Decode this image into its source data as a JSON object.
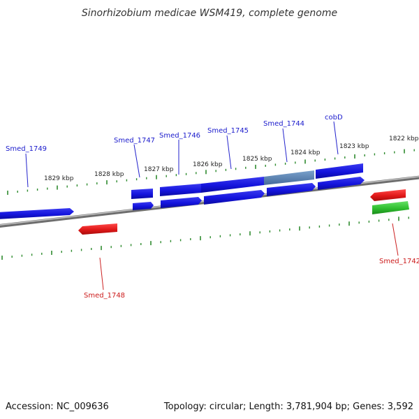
{
  "title": "Sinorhizobium medicae WSM419, complete genome",
  "footer": {
    "accession": "Accession: NC_009636",
    "summary": "Topology: circular; Length: 3,781,904 bp; Genes: 3,592"
  },
  "scale": {
    "tick_color": "#2e8b2e",
    "labels": [
      "1829 kbp",
      "1828 kbp",
      "1827 kbp",
      "1826 kbp",
      "1825 kbp",
      "1824 kbp",
      "1823 kbp",
      "1822 kbp"
    ]
  },
  "colors": {
    "forward_gene": "#1414dd",
    "highlight_gene": "#5b86b6",
    "reverse_gene": "#e01818",
    "rna_gene": "#2fbf2f",
    "backbone": "#8a8a8a",
    "label_blue": "#1a1acc",
    "label_red": "#cc1a1a"
  },
  "gene_labels": [
    {
      "name": "Smed_1749",
      "strand": "forward"
    },
    {
      "name": "Smed_1747",
      "strand": "forward"
    },
    {
      "name": "Smed_1746",
      "strand": "forward"
    },
    {
      "name": "Smed_1745",
      "strand": "forward"
    },
    {
      "name": "Smed_1744",
      "strand": "forward"
    },
    {
      "name": "cobD",
      "strand": "forward"
    },
    {
      "name": "Smed_1748",
      "strand": "reverse"
    },
    {
      "name": "Smed_1742",
      "strand": "reverse"
    }
  ]
}
